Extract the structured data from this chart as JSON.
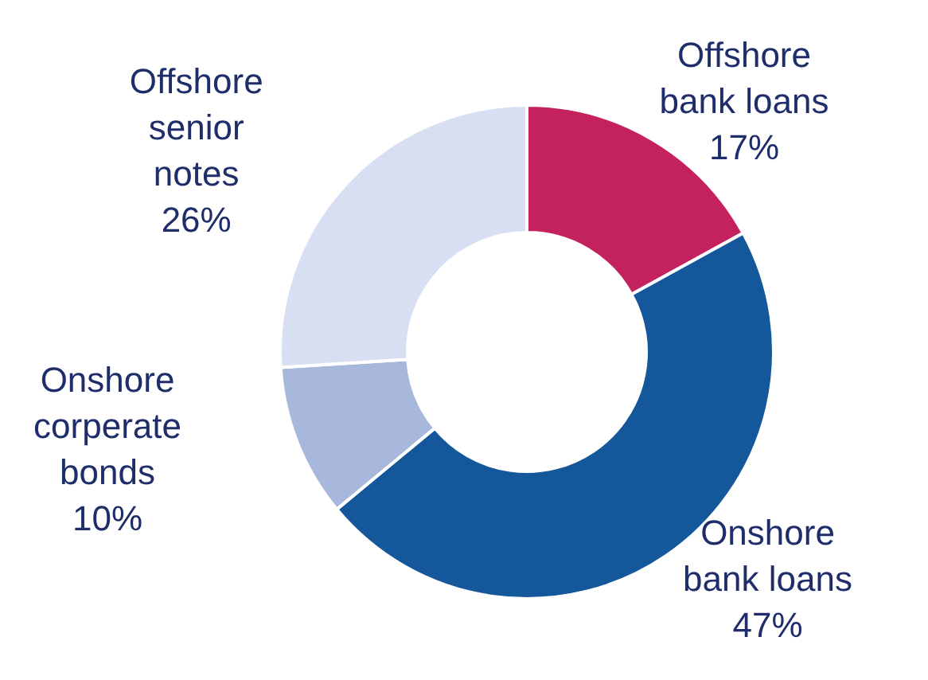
{
  "chart_data": {
    "type": "donut",
    "categories": [
      "Offshore bank loans",
      "Onshore bank loans",
      "Onshore corperate bonds",
      "Offshore senior notes"
    ],
    "values": [
      17,
      47,
      10,
      26
    ],
    "colors": [
      "#c4215f",
      "#14579a",
      "#a8b8dc",
      "#d8dff2"
    ],
    "value_labels": [
      "17%",
      "47%",
      "10%",
      "26%"
    ],
    "legend": false
  }
}
